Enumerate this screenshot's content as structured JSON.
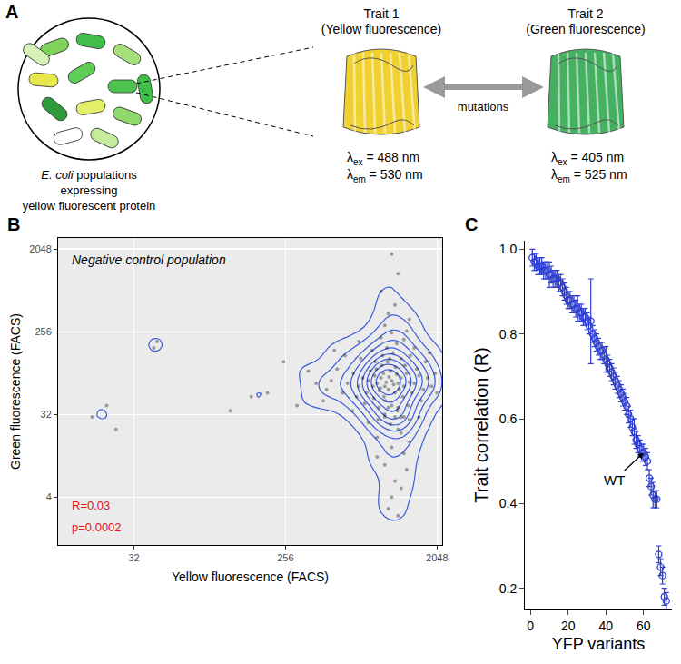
{
  "diagram": {
    "letter": "A",
    "caption": [
      "E. coli populations",
      "expressing",
      "yellow fluorescent protein"
    ],
    "caption_italic": "E. coli",
    "lambda": "λ",
    "arrow_label": "mutations",
    "traits": [
      {
        "title": "Trait 1",
        "subtitle": "(Yellow fluorescence)",
        "color": "#f0cc1a",
        "lines": [
          {
            "sub": "ex",
            "text": " = 488 nm"
          },
          {
            "sub": "em",
            "text": " = 530 nm"
          }
        ]
      },
      {
        "title": "Trait 2",
        "subtitle": "(Green fluorescence)",
        "color": "#2fa84f",
        "lines": [
          {
            "sub": "ex",
            "text": " = 405 nm"
          },
          {
            "sub": "em",
            "text": " = 525 nm"
          }
        ]
      }
    ]
  },
  "chart_data": [
    {
      "panel": "B",
      "type": "scatter",
      "x_label": "Yellow fluorescence (FACS)",
      "y_label": "Green fluorescence (FACS)",
      "log": true,
      "grid": true,
      "xlim": [
        11.3,
        2200
      ],
      "xticks": [
        32,
        256,
        2048
      ],
      "ylim": [
        1.2,
        2700
      ],
      "yticks": [
        4,
        32,
        256,
        2048
      ],
      "annotations": [
        {
          "text": "Negative control population",
          "style": "italic",
          "color": "#000000"
        },
        {
          "text": "R=0.03",
          "color": "#e8141c"
        },
        {
          "text": "p=0.0002",
          "color": "#e8141c"
        }
      ],
      "series": [
        {
          "type": "scatter",
          "color": "#000000",
          "marker": "circle",
          "x": [
            900,
            1000,
            1100,
            950,
            1050,
            1200,
            850,
            980,
            1150,
            1020,
            870,
            1250,
            930,
            1080,
            1130,
            990,
            1300,
            800,
            1060,
            940,
            1180,
            1010,
            890,
            1220,
            960,
            1100,
            780,
            1350,
            1040,
            920,
            1160,
            1280,
            860,
            1400,
            740,
            1070,
            1190,
            970,
            1320,
            820,
            1500,
            700,
            1120,
            1000,
            1450,
            880,
            1250,
            760,
            1600,
            650,
            1030,
            1380,
            910,
            1550,
            680,
            1180,
            1700,
            600,
            1080,
            1420,
            840,
            1650,
            560,
            1300,
            950,
            1800,
            520,
            1100,
            720,
            1500,
            1900,
            480,
            1200,
            800,
            1400,
            640,
            1750,
            1000,
            1350,
            450,
            2000,
            580,
            1050,
            1250,
            900,
            1600,
            700,
            430,
            1850,
            1150,
            2050,
            500,
            1400,
            950,
            1200,
            1100,
            1300,
            1000,
            1150,
            1250,
            1050,
            1350,
            900,
            1200,
            1100,
            1400,
            1300,
            1000,
            1150,
            1250,
            1200,
            1050,
            390,
            350,
            300,
            250,
            200,
            18,
            22,
            25,
            42,
            44,
            120,
            160,
            1100
          ],
          "y": [
            70,
            65,
            75,
            80,
            60,
            70,
            65,
            90,
            55,
            72,
            85,
            80,
            58,
            95,
            68,
            50,
            65,
            75,
            82,
            62,
            88,
            45,
            100,
            60,
            110,
            40,
            55,
            90,
            120,
            38,
            105,
            50,
            48,
            72,
            80,
            130,
            35,
            140,
            110,
            95,
            70,
            65,
            150,
            32,
            55,
            120,
            130,
            42,
            85,
            90,
            170,
            40,
            28,
            100,
            50,
            190,
            60,
            70,
            25,
            140,
            160,
            45,
            55,
            210,
            220,
            80,
            100,
            250,
            130,
            170,
            65,
            75,
            22,
            26,
            28,
            35,
            120,
            300,
            260,
            60,
            90,
            140,
            400,
            20,
            18,
            30,
            200,
            45,
            150,
            500,
            55,
            160,
            350,
            700,
            1100,
            14,
            12,
            9,
            6,
            5,
            3,
            8,
            11,
            2.5,
            4,
            16,
            30,
            30,
            30,
            30,
            38,
            38,
            70,
            95,
            40,
            120,
            55,
            30,
            40,
            22,
            170,
            200,
            35,
            50,
            1800
          ]
        },
        {
          "type": "density_contour",
          "color": "#3b5bdb"
        }
      ]
    },
    {
      "panel": "C",
      "type": "scatter",
      "x_label": "YFP variants",
      "y_label": "Trait correlation (R)",
      "xlim": [
        -3,
        75
      ],
      "xticks": [
        0,
        20,
        40,
        60
      ],
      "ylim": [
        0.15,
        1.02
      ],
      "yticks": [
        0.2,
        0.4,
        0.6,
        0.8,
        {
          "value": 1,
          "label": "1.0"
        }
      ],
      "grid": false,
      "annotations": [
        {
          "text": "WT",
          "x": 60,
          "y": 0.52
        }
      ],
      "series": [
        {
          "type": "scatter",
          "color": "#2f3fd0",
          "marker": "circle-open",
          "x": [
            1,
            2,
            3,
            4,
            5,
            6,
            7,
            8,
            9,
            10,
            11,
            12,
            13,
            14,
            15,
            16,
            17,
            18,
            19,
            20,
            21,
            22,
            23,
            24,
            25,
            26,
            27,
            28,
            29,
            30,
            31,
            32,
            33,
            34,
            35,
            36,
            37,
            38,
            39,
            40,
            41,
            42,
            43,
            44,
            45,
            46,
            47,
            48,
            49,
            50,
            51,
            52,
            53,
            54,
            55,
            56,
            57,
            58,
            59,
            60,
            61,
            62,
            63,
            64,
            65,
            66,
            67,
            68,
            69,
            70,
            71,
            72
          ],
          "values": [
            0.98,
            0.97,
            0.97,
            0.96,
            0.96,
            0.96,
            0.95,
            0.95,
            0.95,
            0.94,
            0.94,
            0.93,
            0.93,
            0.93,
            0.92,
            0.92,
            0.91,
            0.9,
            0.89,
            0.88,
            0.88,
            0.87,
            0.87,
            0.86,
            0.86,
            0.85,
            0.85,
            0.84,
            0.84,
            0.83,
            0.82,
            0.83,
            0.8,
            0.79,
            0.78,
            0.77,
            0.76,
            0.76,
            0.75,
            0.74,
            0.73,
            0.72,
            0.71,
            0.7,
            0.69,
            0.68,
            0.67,
            0.66,
            0.65,
            0.64,
            0.63,
            0.61,
            0.6,
            0.58,
            0.57,
            0.55,
            0.54,
            0.53,
            0.52,
            0.52,
            0.51,
            0.5,
            0.46,
            0.44,
            0.42,
            0.41,
            0.41,
            0.28,
            0.25,
            0.23,
            0.18,
            0.17
          ],
          "errors": [
            0.02,
            0.02,
            0.02,
            0.02,
            0.02,
            0.02,
            0.02,
            0.02,
            0.02,
            0.03,
            0.02,
            0.02,
            0.02,
            0.02,
            0.02,
            0.02,
            0.02,
            0.02,
            0.02,
            0.02,
            0.02,
            0.02,
            0.02,
            0.02,
            0.03,
            0.02,
            0.02,
            0.02,
            0.02,
            0.02,
            0.02,
            0.1,
            0.02,
            0.02,
            0.02,
            0.02,
            0.02,
            0.02,
            0.02,
            0.03,
            0.02,
            0.02,
            0.02,
            0.02,
            0.02,
            0.02,
            0.02,
            0.02,
            0.02,
            0.02,
            0.02,
            0.02,
            0.02,
            0.02,
            0.03,
            0.02,
            0.02,
            0.02,
            0.02,
            0.02,
            0.02,
            0.02,
            0.02,
            0.02,
            0.03,
            0.02,
            0.02,
            0.02,
            0.02,
            0.02,
            0.02,
            0.02
          ]
        }
      ]
    }
  ]
}
